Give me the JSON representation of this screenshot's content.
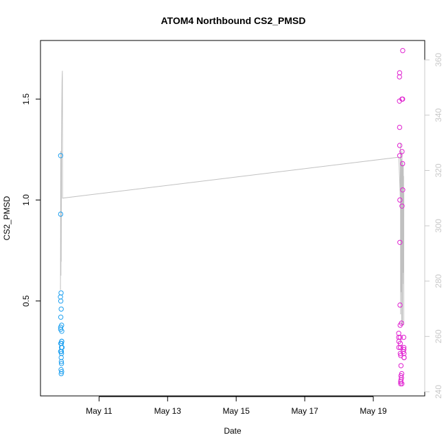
{
  "chart_data": {
    "type": "scatter",
    "title": "ATOM4 Northbound CS2_PMSD",
    "xlabel": "Date",
    "ylabel": "CS2_PMSD",
    "xlim": [
      "2021-05-09 07:00",
      "2021-05-20 12:00"
    ],
    "ylim": [
      0.03,
      1.79
    ],
    "y2lim": [
      238.5,
      367
    ],
    "x_ticks": [
      {
        "date": "2021-05-11",
        "label": "May 11"
      },
      {
        "date": "2021-05-13",
        "label": "May 13"
      },
      {
        "date": "2021-05-15",
        "label": "May 15"
      },
      {
        "date": "2021-05-17",
        "label": "May 17"
      },
      {
        "date": "2021-05-19",
        "label": "May 19"
      }
    ],
    "y_ticks": [
      0.5,
      1.0,
      1.5
    ],
    "y_tick_labels": [
      "0.5",
      "1.0",
      "1.5"
    ],
    "y2_ticks": [
      240,
      260,
      280,
      300,
      320,
      340,
      360
    ],
    "y2_tick_labels": [
      "240",
      "260",
      "280",
      "300",
      "320",
      "340",
      "360"
    ],
    "series": [
      {
        "color": "#1ea0f0",
        "points": [
          {
            "x": "2021-05-09 21:06",
            "y": 1.22
          },
          {
            "x": "2021-05-09 21:06",
            "y": 0.93
          },
          {
            "x": "2021-05-09 21:00",
            "y": 0.52
          },
          {
            "x": "2021-05-09 21:24",
            "y": 0.54
          },
          {
            "x": "2021-05-09 21:12",
            "y": 0.5
          },
          {
            "x": "2021-05-09 21:30",
            "y": 0.46
          },
          {
            "x": "2021-05-09 21:12",
            "y": 0.42
          },
          {
            "x": "2021-05-09 21:06",
            "y": 0.37
          },
          {
            "x": "2021-05-09 21:06",
            "y": 0.36
          },
          {
            "x": "2021-05-09 21:48",
            "y": 0.38
          },
          {
            "x": "2021-05-09 21:54",
            "y": 0.35
          },
          {
            "x": "2021-05-09 21:12",
            "y": 0.29
          },
          {
            "x": "2021-05-09 21:36",
            "y": 0.29
          },
          {
            "x": "2021-05-09 21:48",
            "y": 0.3
          },
          {
            "x": "2021-05-09 21:54",
            "y": 0.3
          },
          {
            "x": "2021-05-09 21:42",
            "y": 0.27
          },
          {
            "x": "2021-05-09 22:06",
            "y": 0.27
          },
          {
            "x": "2021-05-09 21:06",
            "y": 0.25
          },
          {
            "x": "2021-05-09 21:36",
            "y": 0.25
          },
          {
            "x": "2021-05-09 21:42",
            "y": 0.24
          },
          {
            "x": "2021-05-09 21:30",
            "y": 0.22
          },
          {
            "x": "2021-05-09 21:36",
            "y": 0.2
          },
          {
            "x": "2021-05-09 21:42",
            "y": 0.19
          },
          {
            "x": "2021-05-09 21:24",
            "y": 0.16
          },
          {
            "x": "2021-05-09 21:30",
            "y": 0.14
          },
          {
            "x": "2021-05-09 21:48",
            "y": 0.15
          }
        ]
      },
      {
        "color": "#e020d0",
        "points": [
          {
            "x": "2021-05-19 20:36",
            "y": 1.74
          },
          {
            "x": "2021-05-19 18:24",
            "y": 1.63
          },
          {
            "x": "2021-05-19 18:18",
            "y": 1.61
          },
          {
            "x": "2021-05-19 20:06",
            "y": 1.5
          },
          {
            "x": "2021-05-19 20:30",
            "y": 1.5
          },
          {
            "x": "2021-05-19 18:18",
            "y": 1.49
          },
          {
            "x": "2021-05-19 18:24",
            "y": 1.36
          },
          {
            "x": "2021-05-19 18:30",
            "y": 1.27
          },
          {
            "x": "2021-05-19 20:06",
            "y": 1.24
          },
          {
            "x": "2021-05-19 18:30",
            "y": 1.22
          },
          {
            "x": "2021-05-19 20:30",
            "y": 1.18
          },
          {
            "x": "2021-05-19 20:36",
            "y": 1.05
          },
          {
            "x": "2021-05-19 18:36",
            "y": 1.0
          },
          {
            "x": "2021-05-19 20:06",
            "y": 0.97
          },
          {
            "x": "2021-05-19 18:36",
            "y": 0.79
          },
          {
            "x": "2021-05-19 18:42",
            "y": 0.48
          },
          {
            "x": "2021-05-19 19:42",
            "y": 0.39
          },
          {
            "x": "2021-05-19 18:48",
            "y": 0.38
          },
          {
            "x": "2021-05-19 17:48",
            "y": 0.34
          },
          {
            "x": "2021-05-19 17:48",
            "y": 0.32
          },
          {
            "x": "2021-05-19 18:48",
            "y": 0.32
          },
          {
            "x": "2021-05-19 21:18",
            "y": 0.32
          },
          {
            "x": "2021-05-19 17:54",
            "y": 0.3
          },
          {
            "x": "2021-05-19 18:54",
            "y": 0.29
          },
          {
            "x": "2021-05-19 17:54",
            "y": 0.27
          },
          {
            "x": "2021-05-19 19:06",
            "y": 0.27
          },
          {
            "x": "2021-05-19 21:24",
            "y": 0.27
          },
          {
            "x": "2021-05-19 21:24",
            "y": 0.26
          },
          {
            "x": "2021-05-19 18:54",
            "y": 0.24
          },
          {
            "x": "2021-05-19 20:54",
            "y": 0.25
          },
          {
            "x": "2021-05-19 21:30",
            "y": 0.24
          },
          {
            "x": "2021-05-19 19:12",
            "y": 0.23
          },
          {
            "x": "2021-05-19 21:30",
            "y": 0.22
          },
          {
            "x": "2021-05-19 21:36",
            "y": 0.22
          },
          {
            "x": "2021-05-19 19:24",
            "y": 0.18
          },
          {
            "x": "2021-05-19 19:54",
            "y": 0.14
          },
          {
            "x": "2021-05-19 19:24",
            "y": 0.13
          },
          {
            "x": "2021-05-19 19:42",
            "y": 0.12
          },
          {
            "x": "2021-05-19 19:24",
            "y": 0.11
          },
          {
            "x": "2021-05-19 19:12",
            "y": 0.1
          },
          {
            "x": "2021-05-19 19:12",
            "y": 0.09
          },
          {
            "x": "2021-05-19 20:00",
            "y": 0.09
          }
        ]
      },
      {
        "axis": "right",
        "color": "#c0c0c0",
        "line": [
          {
            "x": "2021-05-09 21:00",
            "y": 276.8
          },
          {
            "x": "2021-05-09 21:12",
            "y": 327
          },
          {
            "x": "2021-05-09 21:18",
            "y": 282
          },
          {
            "x": "2021-05-09 21:24",
            "y": 322
          },
          {
            "x": "2021-05-09 21:30",
            "y": 287
          },
          {
            "x": "2021-05-09 21:42",
            "y": 330
          },
          {
            "x": "2021-05-09 22:06",
            "y": 352
          },
          {
            "x": "2021-05-09 22:18",
            "y": 356
          },
          {
            "x": "2021-05-09 22:24",
            "y": 329
          },
          {
            "x": "2021-05-09 22:24",
            "y": 310
          },
          {
            "x": "2021-05-19 17:54",
            "y": 324.8
          },
          {
            "x": "2021-05-19 18:54",
            "y": 310
          },
          {
            "x": "2021-05-19 19:00",
            "y": 330
          },
          {
            "x": "2021-05-19 19:06",
            "y": 268
          },
          {
            "x": "2021-05-19 19:18",
            "y": 327
          },
          {
            "x": "2021-05-19 19:30",
            "y": 276
          },
          {
            "x": "2021-05-19 19:42",
            "y": 324
          },
          {
            "x": "2021-05-19 19:54",
            "y": 264
          },
          {
            "x": "2021-05-19 20:06",
            "y": 327
          },
          {
            "x": "2021-05-19 20:12",
            "y": 279
          },
          {
            "x": "2021-05-19 20:18",
            "y": 322
          },
          {
            "x": "2021-05-19 20:24",
            "y": 264
          },
          {
            "x": "2021-05-19 20:36",
            "y": 323
          },
          {
            "x": "2021-05-19 20:42",
            "y": 283
          },
          {
            "x": "2021-05-19 20:48",
            "y": 317
          },
          {
            "x": "2021-05-19 20:54",
            "y": 303
          },
          {
            "x": "2021-05-19 21:00",
            "y": 322
          },
          {
            "x": "2021-05-19 21:06",
            "y": 279
          },
          {
            "x": "2021-05-19 21:12",
            "y": 318
          },
          {
            "x": "2021-05-19 21:18",
            "y": 264
          },
          {
            "x": "2021-05-19 21:24",
            "y": 312
          }
        ]
      }
    ]
  }
}
